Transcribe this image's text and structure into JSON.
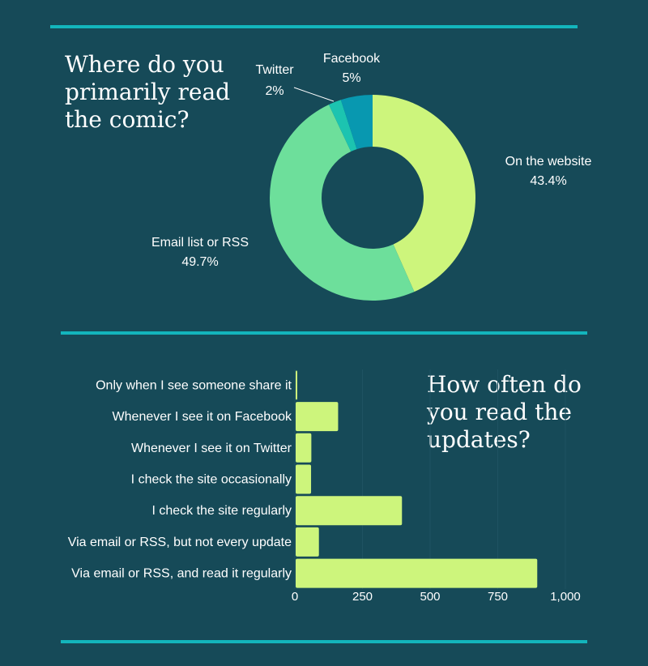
{
  "colors": {
    "background": "#164a58",
    "rule": "#13b5bc",
    "grid": "#1e5362"
  },
  "chart_data": [
    {
      "type": "pie",
      "style": "donut",
      "title": "Where do you primarily read the comic?",
      "slices": [
        {
          "label": "On the website",
          "value_label": "43.4%",
          "value": 43.4,
          "color": "#cdf57c"
        },
        {
          "label": "Email list or RSS",
          "value_label": "49.7%",
          "value": 49.7,
          "color": "#6ddf9b"
        },
        {
          "label": "Twitter",
          "value_label": "2%",
          "value": 2,
          "color": "#1cc4b0"
        },
        {
          "label": "Facebook",
          "value_label": "5%",
          "value": 5,
          "color": "#0898b0"
        }
      ]
    },
    {
      "type": "bar",
      "orientation": "horizontal",
      "title": "How often do you read the updates?",
      "categories": [
        "Only when I see someone share it",
        "Whenever I see it on Facebook",
        "Whenever I see it on Twitter",
        "I check the site occasionally",
        "I check the site regularly",
        "Via email or RSS, but not every update",
        "Via email or RSS, and read it regularly"
      ],
      "values": [
        2,
        157,
        58,
        57,
        393,
        86,
        893
      ],
      "bar_color": "#cdf57c",
      "xlim": [
        0,
        1000
      ],
      "xticks": [
        0,
        250,
        500,
        750,
        1000
      ],
      "xtick_labels": [
        "0",
        "250",
        "500",
        "750",
        "1,000"
      ],
      "grid": true
    }
  ]
}
